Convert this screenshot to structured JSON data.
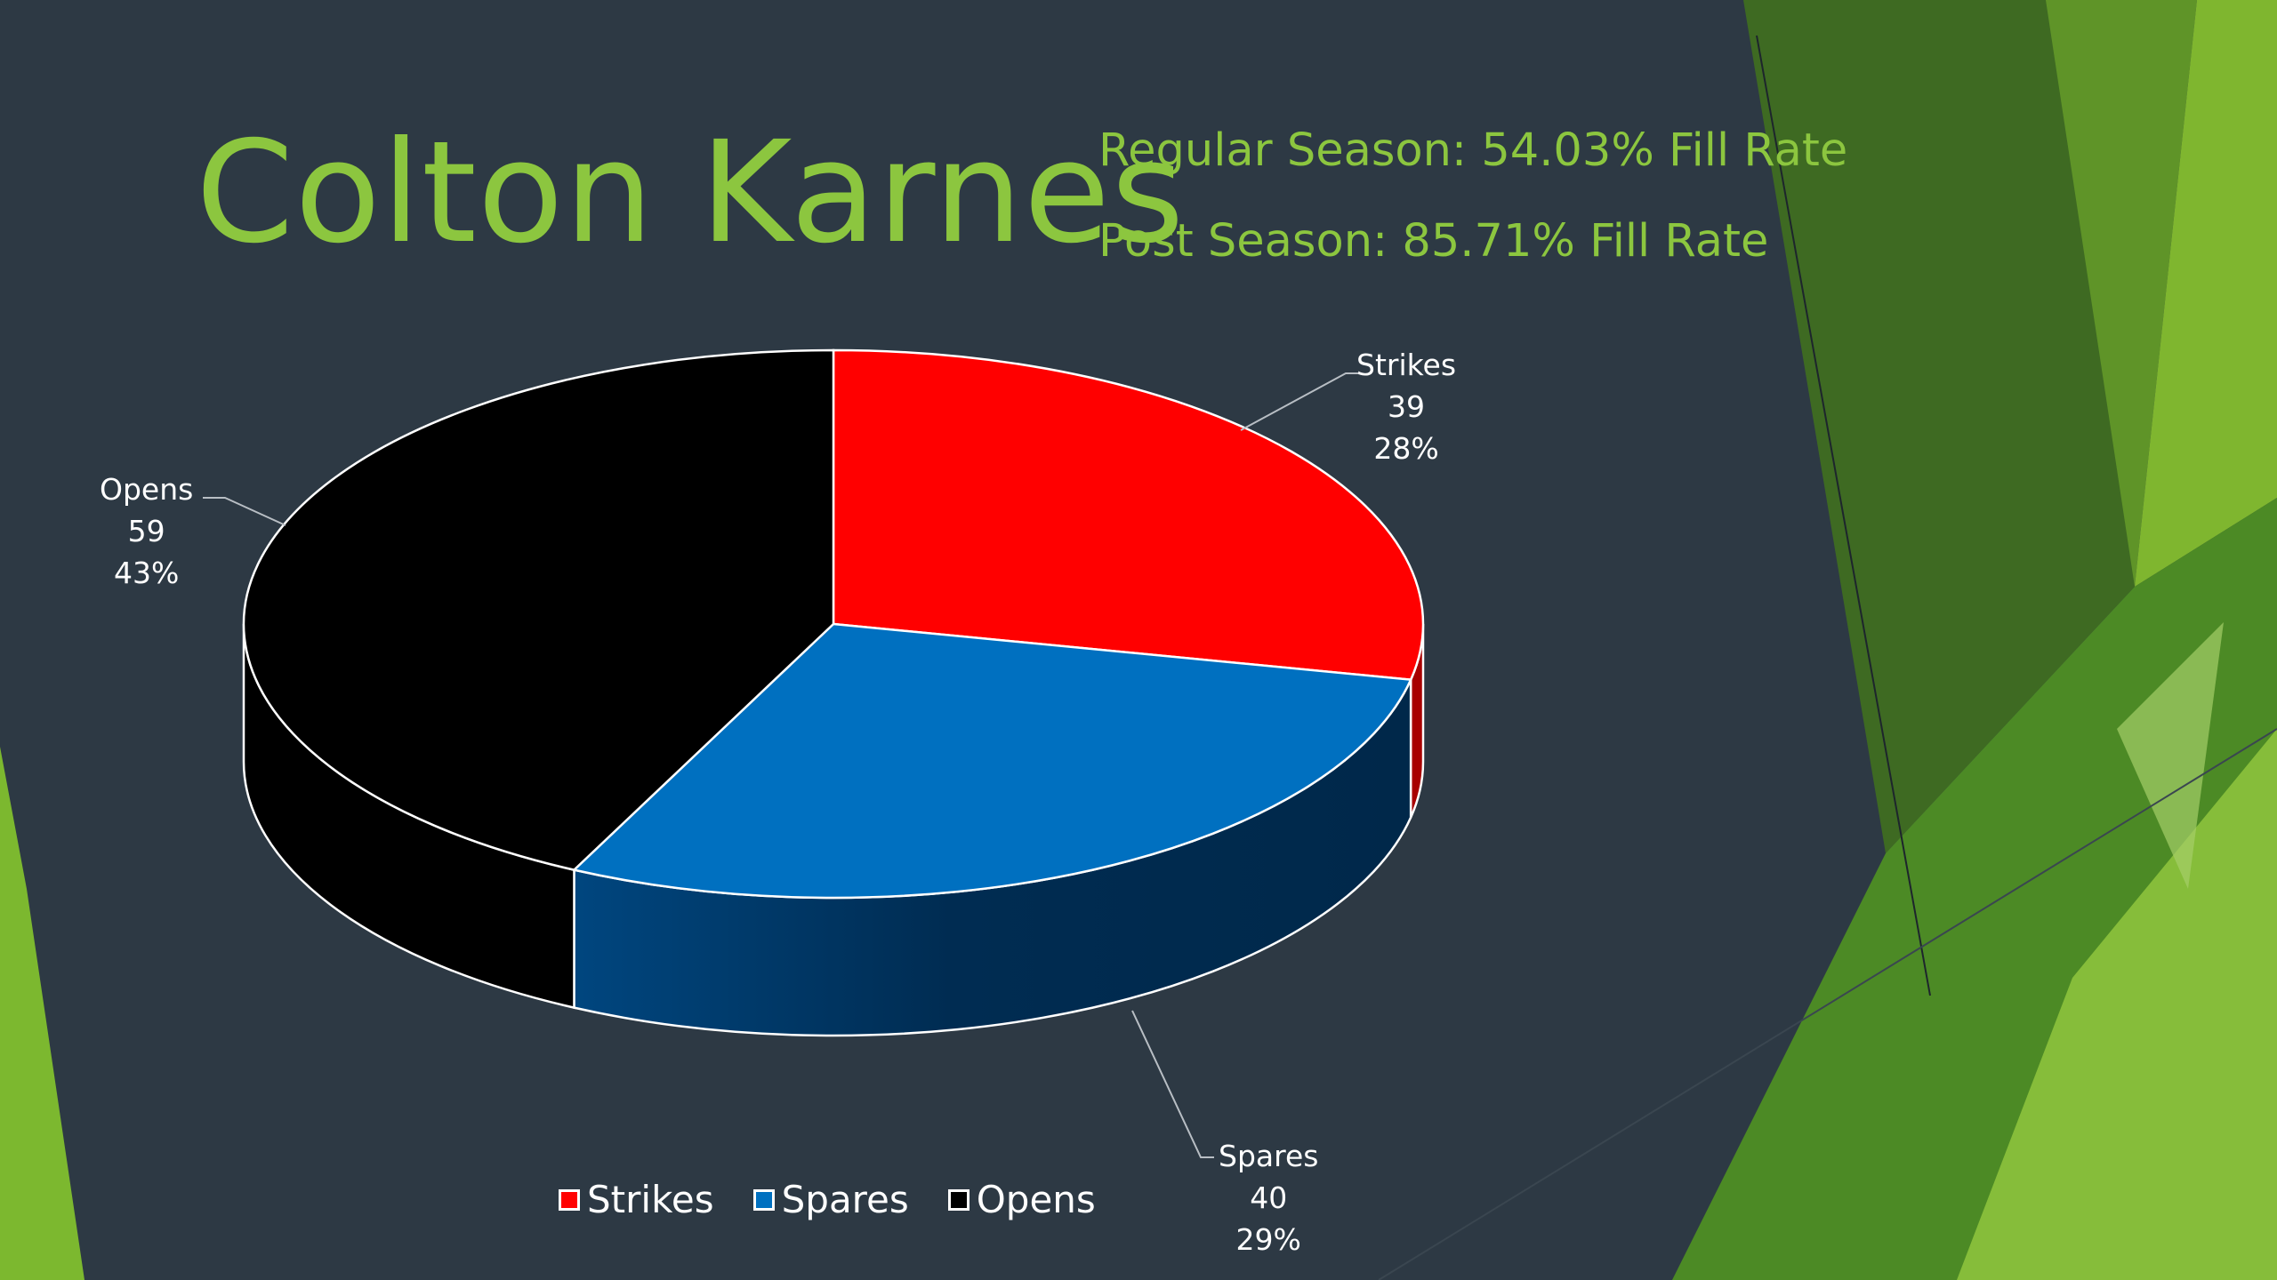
{
  "slide": {
    "title": "Colton Karnes",
    "subtitle_regular": "Regular Season: 54.03% Fill Rate",
    "subtitle_post": "Post Season: 85.71% Fill Rate"
  },
  "colors": {
    "accent": "#8cc63f",
    "background": "#2d3944",
    "strikes": "#ff0000",
    "spares": "#0070c0",
    "opens": "#000000"
  },
  "chart_data": {
    "type": "pie",
    "style": "3d",
    "categories": [
      "Strikes",
      "Spares",
      "Opens"
    ],
    "values": [
      39,
      40,
      59
    ],
    "percent_labels": [
      "28%",
      "29%",
      "43%"
    ],
    "colors": [
      "#ff0000",
      "#0070c0",
      "#000000"
    ],
    "legend": {
      "position": "bottom",
      "entries": [
        "Strikes",
        "Spares",
        "Opens"
      ]
    }
  }
}
